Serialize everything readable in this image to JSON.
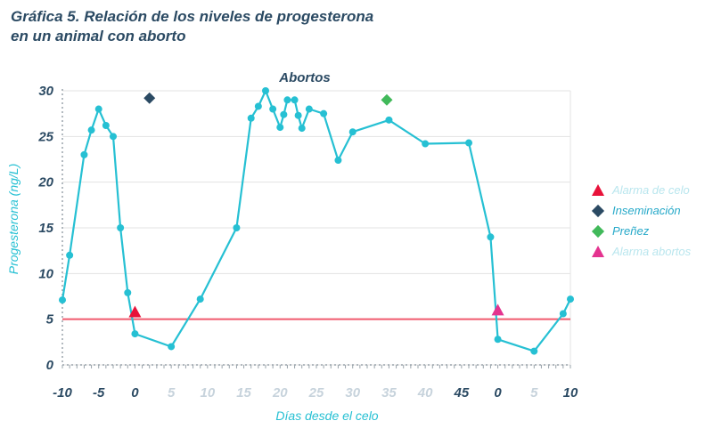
{
  "title": "Gráfica 5. Relación de los niveles de progesterona en un animal con aborto",
  "chart_data": {
    "type": "line",
    "ylabel": "Progesterona (ng/L)",
    "xlabel": "Días desde el celo",
    "ylim": [
      0,
      30
    ],
    "y_ticks": [
      0,
      5,
      10,
      15,
      20,
      25,
      30
    ],
    "x_tick_labels": [
      {
        "label": "-10",
        "faded": false
      },
      {
        "label": "-5",
        "faded": false
      },
      {
        "label": "0",
        "faded": false
      },
      {
        "label": "5",
        "faded": true
      },
      {
        "label": "10",
        "faded": true
      },
      {
        "label": "15",
        "faded": true
      },
      {
        "label": "20",
        "faded": true
      },
      {
        "label": "25",
        "faded": true
      },
      {
        "label": "30",
        "faded": true
      },
      {
        "label": "35",
        "faded": true
      },
      {
        "label": "40",
        "faded": true
      },
      {
        "label": "45",
        "faded": false
      },
      {
        "label": "0",
        "faded": false
      },
      {
        "label": "5",
        "faded": true
      },
      {
        "label": "10",
        "faded": false
      }
    ],
    "grid": true,
    "threshold": {
      "value": 5,
      "color": "#f05a6e"
    },
    "annotation": "Abortos",
    "series": [
      {
        "color": "#26c0d3",
        "points": [
          {
            "x": -10,
            "y": 7.1
          },
          {
            "x": -9,
            "y": 12
          },
          {
            "x": -7,
            "y": 23
          },
          {
            "x": -6,
            "y": 25.7
          },
          {
            "x": -5,
            "y": 28
          },
          {
            "x": -4,
            "y": 26.2
          },
          {
            "x": -3,
            "y": 25
          },
          {
            "x": -2,
            "y": 15
          },
          {
            "x": -1,
            "y": 7.9
          },
          {
            "x": 0,
            "y": 3.4
          },
          {
            "x": 5,
            "y": 2
          },
          {
            "x": 9,
            "y": 7.2
          },
          {
            "x": 14,
            "y": 15
          },
          {
            "x": 16,
            "y": 27
          },
          {
            "x": 17,
            "y": 28.3
          },
          {
            "x": 18,
            "y": 30
          },
          {
            "x": 19,
            "y": 28
          },
          {
            "x": 20,
            "y": 26
          },
          {
            "x": 20.5,
            "y": 27.4
          },
          {
            "x": 21,
            "y": 29
          },
          {
            "x": 22,
            "y": 29
          },
          {
            "x": 22.5,
            "y": 27.3
          },
          {
            "x": 23,
            "y": 25.9
          },
          {
            "x": 24,
            "y": 28
          },
          {
            "x": 26,
            "y": 27.5
          },
          {
            "x": 28,
            "y": 22.4
          },
          {
            "x": 30,
            "y": 25.5
          },
          {
            "x": 35,
            "y": 26.8
          },
          {
            "x": 40,
            "y": 24.2
          },
          {
            "x": 46,
            "y": 24.3
          },
          {
            "x": 49,
            "y": 14
          },
          {
            "x": 50,
            "y": 2.8
          },
          {
            "x": 55,
            "y": 1.5
          },
          {
            "x": 59,
            "y": 5.6
          },
          {
            "x": 60,
            "y": 7.2
          }
        ]
      }
    ],
    "markers": [
      {
        "name": "Alarma de celo",
        "shape": "triangle",
        "color": "#e8123a",
        "x": 0,
        "y": 5.8
      },
      {
        "name": "Inseminación",
        "shape": "diamond",
        "color": "#2b4a63",
        "x": 2,
        "y": 29.2
      },
      {
        "name": "Preñez",
        "shape": "diamond",
        "color": "#41b95a",
        "x": 34.7,
        "y": 29
      },
      {
        "name": "Alarma abortos",
        "shape": "triangle",
        "color": "#e4338f",
        "x": 50,
        "y": 6
      }
    ],
    "legend": {
      "placement": "right",
      "items": [
        {
          "label": "Alarma de celo",
          "shape": "triangle",
          "color": "#e8123a",
          "text_color": "#b9e6ee"
        },
        {
          "label": "Inseminación",
          "shape": "diamond",
          "color": "#2b4a63",
          "text_color": "#26a9c9"
        },
        {
          "label": "Preñez",
          "shape": "diamond",
          "color": "#41b95a",
          "text_color": "#26a9c9"
        },
        {
          "label": "Alarma abortos",
          "shape": "triangle",
          "color": "#e4338f",
          "text_color": "#b9e6ee"
        }
      ]
    }
  }
}
